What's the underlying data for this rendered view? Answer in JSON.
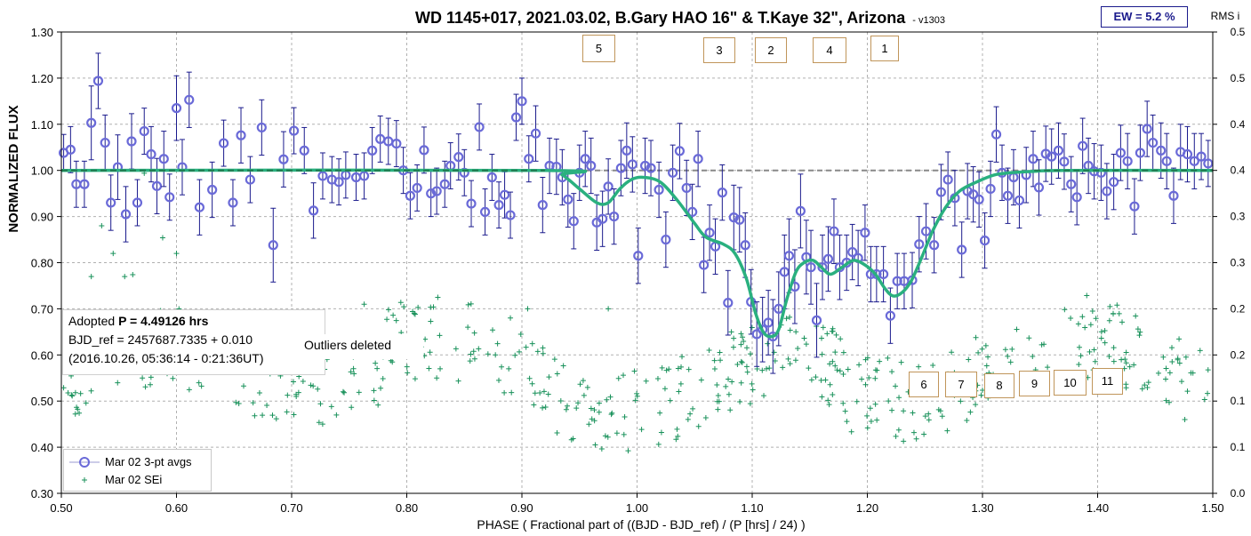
{
  "chart_data": {
    "type": "scatter",
    "title": "WD 1145+017, 2021.03.02, B.Gary HAO 16\" & T.Kaye 32\", Arizona",
    "version": "- v1303",
    "ew_label": "EW = 5.2 %",
    "right_axis_title": "RMS i",
    "xlabel": "PHASE ( Fractional part of ((BJD - BJD_ref) / (P [hrs] / 24) )",
    "ylabel": "NORMALIZED FLUX",
    "xlim": [
      0.5,
      1.5
    ],
    "ylim": [
      0.3,
      1.3
    ],
    "y2lim": [
      0.0,
      0.5
    ],
    "grid": true,
    "x_ticks": [
      "0.50",
      "0.60",
      "0.70",
      "0.80",
      "0.90",
      "1.00",
      "1.10",
      "1.20",
      "1.30",
      "1.40",
      "1.50"
    ],
    "y_ticks": [
      "0.30",
      "0.40",
      "0.50",
      "0.60",
      "0.70",
      "0.80",
      "0.90",
      "1.00",
      "1.10",
      "1.20",
      "1.30"
    ],
    "y2_ticks": [
      "0.0",
      "0.1",
      "0.1",
      "0.2",
      "0.2",
      "0.3",
      "0.3",
      "0.4",
      "0.4",
      "0.5",
      "0.5"
    ],
    "reference_level": 1.0,
    "series": [
      {
        "name": "Mar 02 3-pt avgs",
        "marker": "circle",
        "color": "#1a1a8c",
        "points": [
          [
            0.502,
            1.038,
            0.04
          ],
          [
            0.508,
            1.045,
            0.05
          ],
          [
            0.513,
            0.97,
            0.05
          ],
          [
            0.52,
            0.97,
            0.05
          ],
          [
            0.526,
            1.103,
            0.08
          ],
          [
            0.532,
            1.194,
            0.06
          ],
          [
            0.538,
            1.06,
            0.06
          ],
          [
            0.543,
            0.93,
            0.06
          ],
          [
            0.549,
            1.007,
            0.07
          ],
          [
            0.556,
            0.905,
            0.06
          ],
          [
            0.561,
            1.063,
            0.06
          ],
          [
            0.566,
            0.93,
            0.05
          ],
          [
            0.572,
            1.085,
            0.05
          ],
          [
            0.578,
            1.035,
            0.06
          ],
          [
            0.583,
            0.966,
            0.06
          ],
          [
            0.589,
            1.025,
            0.06
          ],
          [
            0.594,
            0.942,
            0.05
          ],
          [
            0.6,
            1.135,
            0.07
          ],
          [
            0.605,
            1.007,
            0.06
          ],
          [
            0.611,
            1.153,
            0.06
          ],
          [
            0.62,
            0.92,
            0.06
          ],
          [
            0.631,
            0.958,
            0.06
          ],
          [
            0.641,
            1.059,
            0.05
          ],
          [
            0.649,
            0.93,
            0.05
          ],
          [
            0.656,
            1.076,
            0.06
          ],
          [
            0.664,
            0.98,
            0.05
          ],
          [
            0.674,
            1.093,
            0.06
          ],
          [
            0.684,
            0.838,
            0.08
          ],
          [
            0.693,
            1.024,
            0.06
          ],
          [
            0.702,
            1.086,
            0.05
          ],
          [
            0.711,
            1.043,
            0.05
          ],
          [
            0.719,
            0.913,
            0.06
          ],
          [
            0.727,
            0.988,
            0.05
          ],
          [
            0.735,
            0.98,
            0.05
          ],
          [
            0.741,
            0.975,
            0.05
          ],
          [
            0.747,
            0.99,
            0.05
          ],
          [
            0.756,
            0.985,
            0.05
          ],
          [
            0.763,
            0.988,
            0.05
          ],
          [
            0.77,
            1.043,
            0.05
          ],
          [
            0.777,
            1.068,
            0.05
          ],
          [
            0.784,
            1.063,
            0.05
          ],
          [
            0.791,
            1.058,
            0.05
          ],
          [
            0.797,
            1.0,
            0.05
          ],
          [
            0.803,
            0.945,
            0.05
          ],
          [
            0.809,
            0.962,
            0.05
          ],
          [
            0.815,
            1.044,
            0.05
          ],
          [
            0.821,
            0.95,
            0.05
          ],
          [
            0.826,
            0.955,
            0.05
          ],
          [
            0.833,
            0.97,
            0.05
          ],
          [
            0.838,
            1.01,
            0.05
          ],
          [
            0.845,
            1.029,
            0.05
          ],
          [
            0.85,
            0.995,
            0.05
          ],
          [
            0.856,
            0.928,
            0.05
          ],
          [
            0.863,
            1.094,
            0.05
          ],
          [
            0.868,
            0.91,
            0.05
          ],
          [
            0.874,
            0.985,
            0.05
          ],
          [
            0.88,
            0.925,
            0.05
          ],
          [
            0.885,
            0.947,
            0.05
          ],
          [
            0.89,
            0.903,
            0.05
          ],
          [
            0.895,
            1.115,
            0.05
          ],
          [
            0.9,
            1.15,
            0.05
          ],
          [
            0.906,
            1.025,
            0.05
          ],
          [
            0.912,
            1.08,
            0.06
          ],
          [
            0.918,
            0.925,
            0.06
          ],
          [
            0.924,
            1.01,
            0.06
          ],
          [
            0.93,
            1.008,
            0.06
          ],
          [
            0.935,
            0.985,
            0.06
          ],
          [
            0.94,
            0.937,
            0.06
          ],
          [
            0.945,
            0.89,
            0.06
          ],
          [
            0.95,
            0.995,
            0.06
          ],
          [
            0.955,
            1.025,
            0.06
          ],
          [
            0.96,
            1.01,
            0.06
          ],
          [
            0.965,
            0.887,
            0.06
          ],
          [
            0.97,
            0.895,
            0.06
          ],
          [
            0.975,
            0.965,
            0.06
          ],
          [
            0.98,
            0.9,
            0.06
          ],
          [
            0.986,
            1.005,
            0.06
          ],
          [
            0.991,
            1.043,
            0.06
          ],
          [
            0.996,
            1.013,
            0.06
          ],
          [
            1.001,
            0.815,
            0.06
          ],
          [
            1.007,
            1.01,
            0.06
          ],
          [
            1.012,
            1.005,
            0.06
          ],
          [
            1.019,
            0.958,
            0.06
          ],
          [
            1.025,
            0.85,
            0.06
          ],
          [
            1.031,
            0.995,
            0.06
          ],
          [
            1.037,
            1.042,
            0.06
          ],
          [
            1.043,
            0.962,
            0.06
          ],
          [
            1.048,
            0.91,
            0.06
          ],
          [
            1.053,
            1.025,
            0.06
          ],
          [
            1.058,
            0.795,
            0.06
          ],
          [
            1.063,
            0.865,
            0.06
          ],
          [
            1.068,
            0.835,
            0.06
          ],
          [
            1.074,
            0.952,
            0.06
          ],
          [
            1.079,
            0.713,
            0.07
          ],
          [
            1.084,
            0.898,
            0.07
          ],
          [
            1.089,
            0.893,
            0.07
          ],
          [
            1.094,
            0.838,
            0.07
          ],
          [
            1.099,
            0.715,
            0.07
          ],
          [
            1.104,
            0.645,
            0.07
          ],
          [
            1.109,
            0.655,
            0.07
          ],
          [
            1.114,
            0.67,
            0.07
          ],
          [
            1.118,
            0.64,
            0.08
          ],
          [
            1.123,
            0.7,
            0.08
          ],
          [
            1.128,
            0.78,
            0.08
          ],
          [
            1.132,
            0.815,
            0.08
          ],
          [
            1.137,
            0.748,
            0.08
          ],
          [
            1.142,
            0.912,
            0.08
          ],
          [
            1.147,
            0.812,
            0.08
          ],
          [
            1.151,
            0.79,
            0.08
          ],
          [
            1.156,
            0.675,
            0.08
          ],
          [
            1.161,
            0.79,
            0.07
          ],
          [
            1.166,
            0.808,
            0.07
          ],
          [
            1.171,
            0.868,
            0.07
          ],
          [
            1.176,
            0.79,
            0.07
          ],
          [
            1.182,
            0.8,
            0.06
          ],
          [
            1.187,
            0.823,
            0.06
          ],
          [
            1.192,
            0.81,
            0.06
          ],
          [
            1.198,
            0.865,
            0.06
          ],
          [
            1.203,
            0.775,
            0.06
          ],
          [
            1.208,
            0.775,
            0.06
          ],
          [
            1.214,
            0.775,
            0.06
          ],
          [
            1.22,
            0.685,
            0.06
          ],
          [
            1.226,
            0.76,
            0.06
          ],
          [
            1.232,
            0.76,
            0.06
          ],
          [
            1.239,
            0.762,
            0.06
          ],
          [
            1.245,
            0.84,
            0.06
          ],
          [
            1.251,
            0.868,
            0.06
          ],
          [
            1.258,
            0.838,
            0.06
          ],
          [
            1.264,
            0.953,
            0.06
          ],
          [
            1.27,
            0.98,
            0.06
          ],
          [
            1.276,
            0.94,
            0.06
          ],
          [
            1.282,
            0.828,
            0.06
          ],
          [
            1.287,
            0.955,
            0.06
          ],
          [
            1.292,
            0.948,
            0.06
          ],
          [
            1.297,
            0.937,
            0.06
          ],
          [
            1.302,
            0.848,
            0.06
          ],
          [
            1.307,
            0.96,
            0.06
          ],
          [
            1.312,
            1.078,
            0.06
          ],
          [
            1.317,
            0.995,
            0.06
          ],
          [
            1.322,
            0.945,
            0.06
          ],
          [
            1.327,
            0.985,
            0.06
          ],
          [
            1.332,
            0.935,
            0.06
          ],
          [
            1.338,
            0.99,
            0.06
          ],
          [
            1.344,
            1.025,
            0.06
          ],
          [
            1.349,
            0.963,
            0.06
          ],
          [
            1.355,
            1.036,
            0.06
          ],
          [
            1.36,
            1.03,
            0.06
          ],
          [
            1.366,
            1.043,
            0.06
          ],
          [
            1.371,
            1.019,
            0.06
          ],
          [
            1.377,
            0.97,
            0.06
          ],
          [
            1.382,
            0.942,
            0.06
          ],
          [
            1.387,
            1.053,
            0.06
          ],
          [
            1.392,
            1.01,
            0.06
          ],
          [
            1.397,
            0.998,
            0.06
          ],
          [
            1.403,
            0.995,
            0.06
          ],
          [
            1.408,
            0.955,
            0.06
          ],
          [
            1.414,
            0.975,
            0.06
          ],
          [
            1.42,
            1.038,
            0.06
          ],
          [
            1.426,
            1.02,
            0.06
          ],
          [
            1.432,
            0.922,
            0.06
          ],
          [
            1.437,
            1.038,
            0.06
          ],
          [
            1.443,
            1.09,
            0.06
          ],
          [
            1.448,
            1.06,
            0.06
          ],
          [
            1.455,
            1.043,
            0.06
          ],
          [
            1.46,
            1.02,
            0.06
          ],
          [
            1.466,
            0.945,
            0.06
          ],
          [
            1.472,
            1.04,
            0.06
          ],
          [
            1.478,
            1.035,
            0.06
          ],
          [
            1.484,
            1.02,
            0.06
          ],
          [
            1.49,
            1.03,
            0.05
          ],
          [
            1.496,
            1.015,
            0.05
          ]
        ]
      },
      {
        "name": "Mar 02 SEi",
        "marker": "plus",
        "color": "#18915a",
        "seed": 12345
      }
    ],
    "model_curve": {
      "color": "#2ab07f",
      "points": [
        [
          0.5,
          1.0
        ],
        [
          0.92,
          1.0
        ],
        [
          0.935,
          0.99
        ],
        [
          0.95,
          0.96
        ],
        [
          0.965,
          0.93
        ],
        [
          0.975,
          0.93
        ],
        [
          0.985,
          0.96
        ],
        [
          0.995,
          0.98
        ],
        [
          1.005,
          0.985
        ],
        [
          1.02,
          0.975
        ],
        [
          1.035,
          0.935
        ],
        [
          1.05,
          0.885
        ],
        [
          1.06,
          0.855
        ],
        [
          1.075,
          0.84
        ],
        [
          1.085,
          0.82
        ],
        [
          1.095,
          0.765
        ],
        [
          1.103,
          0.69
        ],
        [
          1.11,
          0.648
        ],
        [
          1.117,
          0.64
        ],
        [
          1.123,
          0.655
        ],
        [
          1.13,
          0.72
        ],
        [
          1.138,
          0.78
        ],
        [
          1.145,
          0.8
        ],
        [
          1.153,
          0.805
        ],
        [
          1.16,
          0.79
        ],
        [
          1.168,
          0.775
        ],
        [
          1.178,
          0.79
        ],
        [
          1.188,
          0.805
        ],
        [
          1.198,
          0.795
        ],
        [
          1.207,
          0.775
        ],
        [
          1.215,
          0.745
        ],
        [
          1.222,
          0.728
        ],
        [
          1.23,
          0.735
        ],
        [
          1.238,
          0.76
        ],
        [
          1.247,
          0.81
        ],
        [
          1.257,
          0.87
        ],
        [
          1.268,
          0.92
        ],
        [
          1.28,
          0.955
        ],
        [
          1.295,
          0.975
        ],
        [
          1.31,
          0.99
        ],
        [
          1.325,
          0.995
        ],
        [
          1.345,
          0.998
        ],
        [
          1.37,
          1.0
        ],
        [
          1.5,
          1.0
        ]
      ]
    },
    "event_labels": [
      "5",
      "3",
      "2",
      "4",
      "1",
      "6",
      "7",
      "8",
      "9",
      "10",
      "11"
    ],
    "legend": [
      "Mar 02 3-pt avgs",
      "Mar 02 SEi"
    ],
    "annotation": {
      "line1_prefix": "Adopted ",
      "line1_bold": "P = 4.49126 hrs",
      "line2": "BJD_ref = 2457687.7335 + 0.010",
      "line3": "(2016.10.26, 05:36:14 - 0:21:36UT)",
      "outliers": "Outliers deleted"
    }
  }
}
